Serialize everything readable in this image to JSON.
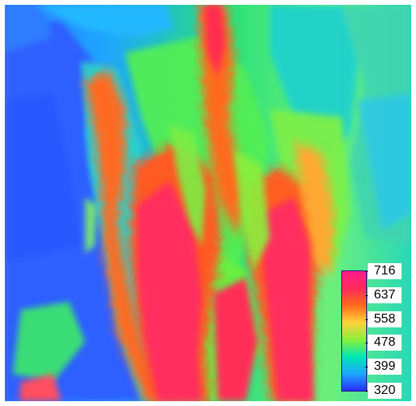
{
  "map": {
    "type": "elevation raster",
    "palette": [
      "#2b2cff",
      "#1aa8ff",
      "#00e8b0",
      "#8cf03a",
      "#ffd23a",
      "#ff6a1a",
      "#ff2a5a",
      "#ff1a8c"
    ]
  },
  "legend": {
    "orientation": "vertical",
    "placement": "bottom-right",
    "labels": [
      "716",
      "637",
      "558",
      "478",
      "399",
      "320"
    ],
    "min": 320,
    "max": 716
  }
}
